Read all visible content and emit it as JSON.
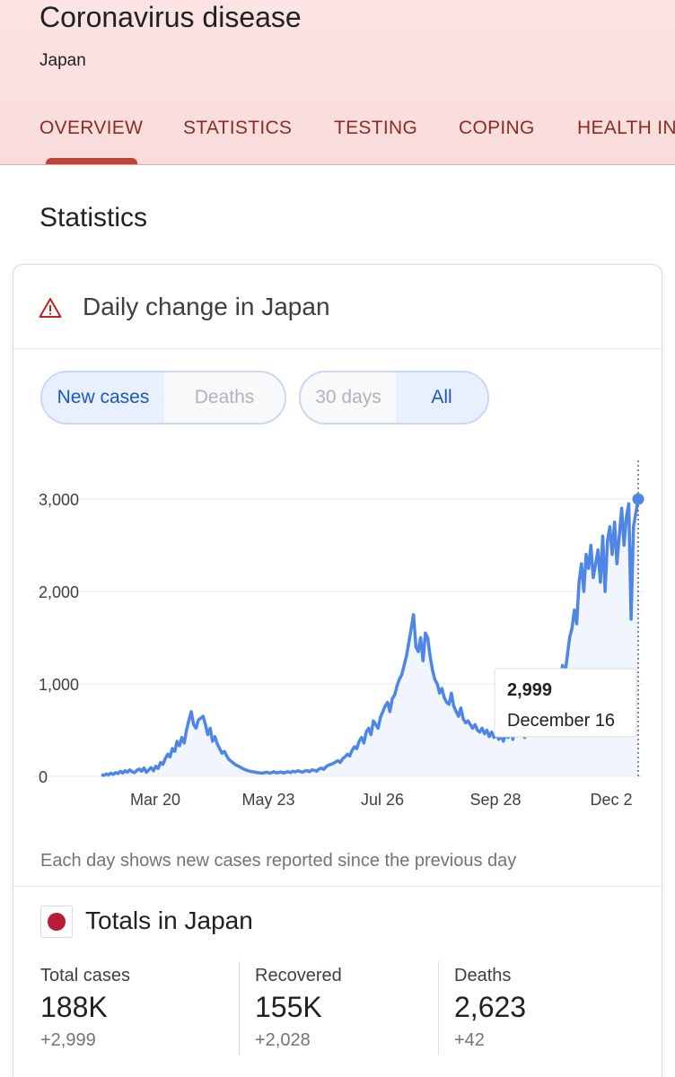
{
  "header": {
    "title": "Coronavirus disease",
    "subtitle": "Japan",
    "tabs": [
      "OVERVIEW",
      "STATISTICS",
      "TESTING",
      "COPING",
      "HEALTH IN"
    ]
  },
  "section_title": "Statistics",
  "card": {
    "title": "Daily change in Japan",
    "metric_toggle": [
      "New cases",
      "Deaths"
    ],
    "range_toggle": [
      "30 days",
      "All"
    ],
    "footnote": "Each day shows new cases reported since the previous day"
  },
  "colors": {
    "accent_tab": "#8b2b25",
    "line": "#4f86e6",
    "flag": "#b71c38"
  },
  "icons": {
    "warning": "warning-triangle-icon",
    "flag": "japan-flag-icon"
  },
  "chart_data": {
    "type": "line",
    "xlabel": "",
    "ylabel": "",
    "ylim": [
      0,
      3000
    ],
    "y_ticks": [
      "0",
      "1,000",
      "2,000",
      "3,000"
    ],
    "x_ticks": [
      "Mar 20",
      "May 23",
      "Jul 26",
      "Sep 28",
      "Dec 2"
    ],
    "x_start": "Feb 4",
    "x_end": "Dec 16",
    "series": [
      {
        "values": [
          20,
          10,
          25,
          15,
          35,
          20,
          40,
          30,
          55,
          35,
          60,
          45,
          70,
          50,
          40,
          65,
          80,
          55,
          90,
          45,
          70,
          95,
          60,
          110,
          85,
          150,
          130,
          190,
          240,
          210,
          300,
          270,
          380,
          330,
          420,
          360,
          500,
          610,
          700,
          560,
          520,
          610,
          630,
          650,
          560,
          450,
          520,
          380,
          430,
          350,
          300,
          250,
          270,
          220,
          180,
          160,
          140,
          120,
          110,
          95,
          80,
          70,
          60,
          55,
          50,
          45,
          40,
          38,
          35,
          40,
          45,
          35,
          40,
          50,
          38,
          42,
          48,
          36,
          45,
          50,
          40,
          55,
          48,
          60,
          52,
          45,
          58,
          62,
          50,
          70,
          66,
          55,
          80,
          90,
          75,
          105,
          120,
          130,
          140,
          155,
          170,
          150,
          190,
          210,
          240,
          220,
          280,
          320,
          300,
          380,
          420,
          360,
          480,
          520,
          450,
          600,
          560,
          520,
          640,
          700,
          760,
          800,
          700,
          840,
          880,
          980,
          1050,
          1100,
          1200,
          1300,
          1450,
          1600,
          1750,
          1400,
          1350,
          1500,
          1250,
          1550,
          1500,
          1300,
          1150,
          1050,
          1000,
          900,
          950,
          850,
          800,
          780,
          900,
          760,
          700,
          650,
          740,
          620,
          580,
          600,
          560,
          520,
          560,
          500,
          480,
          520,
          460,
          500,
          430,
          480,
          420,
          460,
          400,
          440,
          380,
          460,
          420,
          500,
          400,
          520,
          440,
          480,
          560,
          420,
          600,
          520,
          480,
          620,
          500,
          560,
          640,
          480,
          620,
          720,
          600,
          760,
          880,
          700,
          1000,
          1200,
          1100,
          1300,
          1500,
          1600,
          1800,
          1650,
          2100,
          2300,
          2000,
          2400,
          2250,
          2500,
          2150,
          2300,
          2450,
          2100,
          2600,
          2000,
          2550,
          2700,
          2400,
          2750,
          2300,
          2600,
          2900,
          2500,
          2800,
          2950,
          1700,
          2700,
          2850,
          2999
        ]
      }
    ],
    "tooltip": {
      "value": "2,999",
      "date": "December 16"
    }
  },
  "totals": {
    "title": "Totals in Japan",
    "stats": [
      {
        "label": "Total cases",
        "value": "188K",
        "delta": "+2,999"
      },
      {
        "label": "Recovered",
        "value": "155K",
        "delta": "+2,028"
      },
      {
        "label": "Deaths",
        "value": "2,623",
        "delta": "+42"
      }
    ]
  }
}
